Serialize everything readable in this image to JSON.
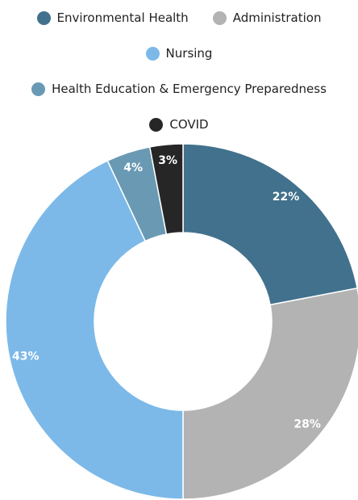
{
  "chart_data": {
    "type": "pie",
    "categories": [
      "Environmental Health",
      "Administration",
      "Nursing",
      "Health Education & Emergency Preparedness",
      "COVID"
    ],
    "values": [
      22,
      28,
      43,
      4,
      3
    ],
    "value_labels": [
      "22%",
      "28%",
      "43%",
      "4%",
      "3%"
    ],
    "colors": [
      "#41718c",
      "#b3b3b3",
      "#7cb9e8",
      "#6a9ab3",
      "#262626"
    ],
    "donut": true
  }
}
